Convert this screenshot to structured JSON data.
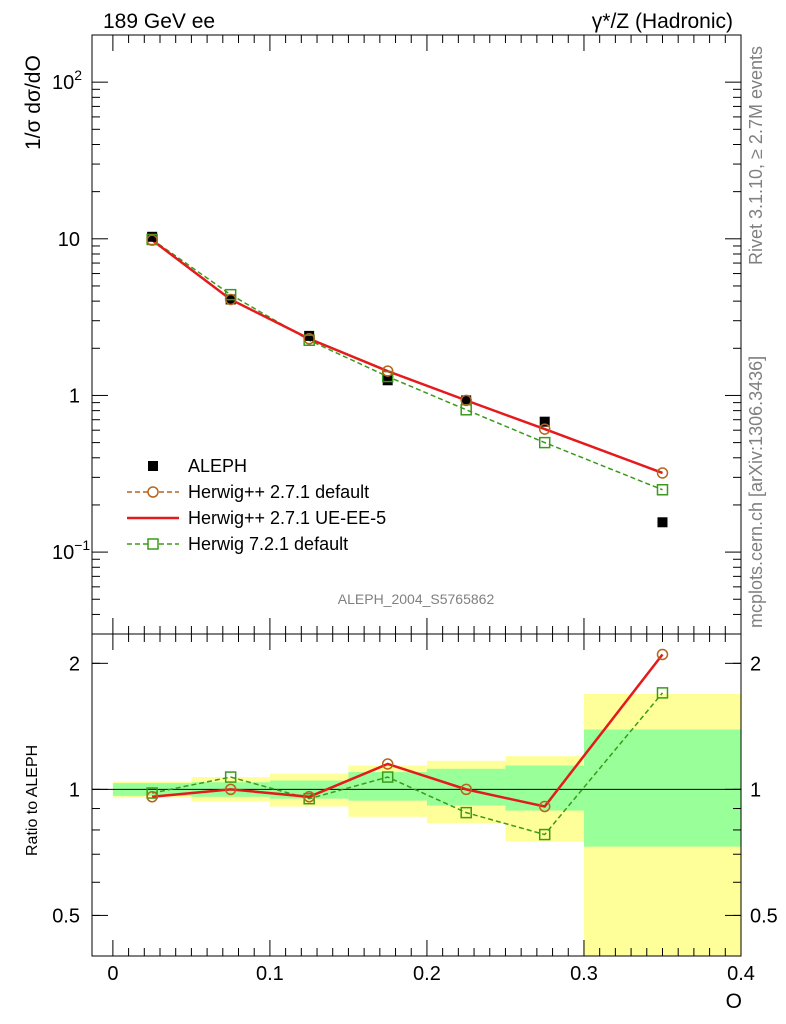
{
  "header": {
    "left": "189 GeV ee",
    "right": "γ*/Z (Hadronic)"
  },
  "side_text": {
    "rivet": "Rivet 3.1.10, ≥ 2.7M events",
    "site": "mcplots.cern.ch [arXiv:1306.3436]"
  },
  "analysis_label": "ALEPH_2004_S5765862",
  "colors": {
    "data": "#000000",
    "herwigpp_default": "#b5651d",
    "herwigpp_ueee5": "#e41a1c",
    "herwig7": "#3a9a1a",
    "band_yellow": "#ffff99",
    "band_green": "#99ff99"
  },
  "chart_data": [
    {
      "type": "scatter",
      "title": "",
      "xlabel": "",
      "ylabel": "1/σ  dσ/dO",
      "yscale": "log",
      "ylim": [
        0.03,
        200
      ],
      "xlim": [
        -0.0133,
        0.4
      ],
      "yticks": [
        {
          "value": 0.1,
          "label": "10",
          "sup": "−1"
        },
        {
          "value": 1,
          "label": "1",
          "sup": ""
        },
        {
          "value": 10,
          "label": "10",
          "sup": ""
        },
        {
          "value": 100,
          "label": "10",
          "sup": "2"
        }
      ],
      "legend": {
        "placement": "lower-left",
        "entries": [
          {
            "key": "data",
            "label": "ALEPH"
          },
          {
            "key": "herwigpp_default",
            "label": "Herwig++ 2.7.1 default"
          },
          {
            "key": "herwigpp_ueee5",
            "label": "Herwig++ 2.7.1 UE-EE-5"
          },
          {
            "key": "herwig7",
            "label": "Herwig 7.2.1 default"
          }
        ]
      },
      "x": [
        0.025,
        0.075,
        0.125,
        0.175,
        0.225,
        0.275,
        0.35
      ],
      "series": [
        {
          "key": "data",
          "name": "ALEPH",
          "values": [
            10.3,
            4.1,
            2.4,
            1.25,
            0.93,
            0.68,
            0.155
          ]
        },
        {
          "key": "herwigpp_default",
          "name": "Herwig++ 2.7.1 default",
          "values": [
            9.8,
            4.1,
            2.3,
            1.43,
            0.93,
            0.61,
            0.32
          ]
        },
        {
          "key": "herwigpp_ueee5",
          "name": "Herwig++ 2.7.1 UE-EE-5",
          "values": [
            9.8,
            4.1,
            2.3,
            1.43,
            0.93,
            0.61,
            0.32
          ]
        },
        {
          "key": "herwig7",
          "name": "Herwig 7.2.1 default",
          "values": [
            9.9,
            4.4,
            2.25,
            1.32,
            0.81,
            0.5,
            0.25
          ]
        }
      ]
    },
    {
      "type": "line",
      "title": "",
      "xlabel": "O",
      "ylabel": "Ratio to ALEPH",
      "yscale": "log",
      "ylim": [
        0.4,
        2.35
      ],
      "xlim": [
        -0.0133,
        0.4
      ],
      "xticks": [
        {
          "value": 0,
          "label": "0"
        },
        {
          "value": 0.1,
          "label": "0.1"
        },
        {
          "value": 0.2,
          "label": "0.2"
        },
        {
          "value": 0.3,
          "label": "0.3"
        },
        {
          "value": 0.4,
          "label": "0.4"
        }
      ],
      "yticks": [
        {
          "value": 0.5,
          "label": "0.5"
        },
        {
          "value": 1,
          "label": "1"
        },
        {
          "value": 2,
          "label": "2"
        }
      ],
      "x": [
        0.025,
        0.075,
        0.125,
        0.175,
        0.225,
        0.275,
        0.35
      ],
      "bins": [
        [
          0.0,
          0.05
        ],
        [
          0.05,
          0.1
        ],
        [
          0.1,
          0.15
        ],
        [
          0.15,
          0.2
        ],
        [
          0.2,
          0.25
        ],
        [
          0.25,
          0.3
        ],
        [
          0.3,
          0.4
        ]
      ],
      "bands": {
        "yellow": [
          [
            0.955,
            1.045
          ],
          [
            0.935,
            1.07
          ],
          [
            0.91,
            1.09
          ],
          [
            0.86,
            1.14
          ],
          [
            0.83,
            1.17
          ],
          [
            0.75,
            1.2
          ],
          [
            0.4,
            1.69
          ]
        ],
        "green": [
          [
            0.965,
            1.035
          ],
          [
            0.96,
            1.04
          ],
          [
            0.95,
            1.05
          ],
          [
            0.94,
            1.1
          ],
          [
            0.915,
            1.12
          ],
          [
            0.89,
            1.14
          ],
          [
            0.73,
            1.39
          ]
        ]
      },
      "series": [
        {
          "key": "herwigpp_default",
          "name": "Herwig++ 2.7.1 default",
          "values": [
            0.96,
            1.0,
            0.96,
            1.15,
            1.0,
            0.91,
            2.1
          ]
        },
        {
          "key": "herwigpp_ueee5",
          "name": "Herwig++ 2.7.1 UE-EE-5",
          "values": [
            0.96,
            1.0,
            0.96,
            1.15,
            1.0,
            0.91,
            2.1
          ]
        },
        {
          "key": "herwig7",
          "name": "Herwig 7.2.1 default",
          "values": [
            0.98,
            1.07,
            0.95,
            1.07,
            0.88,
            0.78,
            1.7
          ]
        }
      ]
    }
  ]
}
